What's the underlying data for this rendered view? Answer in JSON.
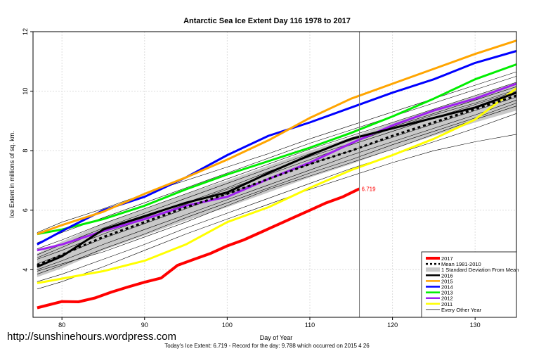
{
  "watermark": "http://sunshinehours.wordpress.com",
  "footer": "Today's Ice Extent: 6.719 - Record for the day: 9.788 which occurred on 2015 4 26",
  "chart_data": {
    "type": "line",
    "title": "Antarctic Sea Ice Extent Day 116 1978 to 2017",
    "xlabel": "Day of Year",
    "ylabel": "Ice Extent in millions of sq. km.",
    "xlim": [
      76.5,
      135
    ],
    "ylim": [
      2.4,
      12
    ],
    "x_ticks": [
      80,
      90,
      100,
      110,
      120,
      130
    ],
    "y_ticks": [
      4,
      6,
      8,
      10,
      12
    ],
    "grid": true,
    "legend_position": "bottom-right",
    "current_day_line": 116,
    "current_label": "6.719",
    "band": {
      "name": "1 Standard Deviation From Mean",
      "x": [
        77,
        80,
        85,
        90,
        95,
        100,
        105,
        110,
        115,
        120,
        125,
        130,
        135
      ],
      "upper": [
        4.55,
        4.95,
        5.55,
        6.05,
        6.55,
        7.0,
        7.5,
        8.0,
        8.45,
        8.95,
        9.4,
        9.85,
        10.3
      ],
      "lower": [
        3.75,
        4.05,
        4.65,
        5.15,
        5.65,
        6.1,
        6.6,
        7.1,
        7.55,
        8.05,
        8.5,
        8.95,
        9.35
      ]
    },
    "series": [
      {
        "name": "2017",
        "color": "#ff0000",
        "width": 4,
        "x": [
          77,
          80,
          82,
          84,
          86,
          88,
          90,
          92,
          94,
          96,
          98,
          100,
          102,
          104,
          106,
          108,
          110,
          112,
          114,
          116
        ],
        "y": [
          2.72,
          2.93,
          2.92,
          3.05,
          3.25,
          3.42,
          3.58,
          3.72,
          4.15,
          4.35,
          4.55,
          4.8,
          5.0,
          5.25,
          5.5,
          5.75,
          6.0,
          6.25,
          6.45,
          6.72
        ]
      },
      {
        "name": "Mean 1981-2010",
        "color": "#000000",
        "width": 3,
        "dash": "4,4",
        "x": [
          77,
          80,
          85,
          90,
          95,
          100,
          105,
          110,
          115,
          120,
          125,
          130,
          135
        ],
        "y": [
          4.15,
          4.5,
          5.1,
          5.6,
          6.1,
          6.55,
          7.05,
          7.55,
          8.0,
          8.5,
          8.95,
          9.4,
          9.85
        ]
      },
      {
        "name": "2016",
        "color": "#000000",
        "width": 3,
        "x": [
          77,
          80,
          85,
          90,
          95,
          100,
          105,
          110,
          115,
          120,
          125,
          130,
          135
        ],
        "y": [
          4.1,
          4.45,
          5.35,
          5.8,
          6.25,
          6.6,
          7.25,
          7.85,
          8.4,
          8.75,
          9.1,
          9.45,
          9.95
        ]
      },
      {
        "name": "2015",
        "color": "#ffa500",
        "width": 3,
        "x": [
          77,
          80,
          85,
          90,
          95,
          100,
          105,
          110,
          115,
          120,
          125,
          130,
          135
        ],
        "y": [
          5.2,
          5.5,
          5.95,
          6.55,
          7.1,
          7.7,
          8.35,
          9.1,
          9.75,
          10.25,
          10.75,
          11.25,
          11.7
        ]
      },
      {
        "name": "2014",
        "color": "#0000ff",
        "width": 3,
        "x": [
          77,
          80,
          85,
          90,
          95,
          100,
          105,
          110,
          115,
          120,
          125,
          130,
          135
        ],
        "y": [
          4.85,
          5.3,
          6.0,
          6.45,
          7.1,
          7.85,
          8.5,
          8.95,
          9.45,
          9.95,
          10.4,
          10.95,
          11.35
        ]
      },
      {
        "name": "2013",
        "color": "#00ee00",
        "width": 3,
        "x": [
          77,
          80,
          85,
          90,
          95,
          100,
          105,
          110,
          115,
          120,
          125,
          130,
          135
        ],
        "y": [
          5.2,
          5.35,
          5.7,
          6.15,
          6.7,
          7.2,
          7.65,
          8.1,
          8.6,
          9.15,
          9.75,
          10.4,
          10.9
        ]
      },
      {
        "name": "2012",
        "color": "#a020f0",
        "width": 3,
        "x": [
          77,
          80,
          85,
          90,
          95,
          100,
          105,
          110,
          115,
          120,
          125,
          130,
          135
        ],
        "y": [
          4.65,
          4.85,
          5.3,
          5.7,
          6.15,
          6.45,
          7.05,
          7.6,
          8.25,
          8.85,
          9.35,
          9.75,
          10.25
        ]
      },
      {
        "name": "2011",
        "color": "#ffff00",
        "width": 3,
        "x": [
          77,
          80,
          85,
          90,
          95,
          100,
          105,
          110,
          115,
          120,
          125,
          130,
          135
        ],
        "y": [
          3.55,
          3.7,
          3.95,
          4.3,
          4.85,
          5.6,
          6.1,
          6.75,
          7.35,
          7.85,
          8.4,
          9.05,
          10.1
        ]
      }
    ],
    "other_years": {
      "name": "Every Other Year",
      "color": "#000000",
      "x": [
        77,
        80,
        85,
        90,
        95,
        100,
        105,
        110,
        115,
        120,
        125,
        130,
        135
      ],
      "lines": [
        [
          3.35,
          3.6,
          4.1,
          4.65,
          5.2,
          5.7,
          6.2,
          6.7,
          7.15,
          7.6,
          8.0,
          8.3,
          8.55
        ],
        [
          3.6,
          3.85,
          4.35,
          4.85,
          5.4,
          5.9,
          6.4,
          6.9,
          7.4,
          7.85,
          8.3,
          8.75,
          9.25
        ],
        [
          3.85,
          4.15,
          4.7,
          5.2,
          5.75,
          6.25,
          6.75,
          7.25,
          7.7,
          8.2,
          8.65,
          9.1,
          9.6
        ],
        [
          4.0,
          4.3,
          4.85,
          5.35,
          5.85,
          6.35,
          6.85,
          7.35,
          7.85,
          8.3,
          8.75,
          9.2,
          9.7
        ],
        [
          4.2,
          4.5,
          5.05,
          5.55,
          6.05,
          6.55,
          7.05,
          7.55,
          8.0,
          8.45,
          8.9,
          9.35,
          9.8
        ],
        [
          4.35,
          4.65,
          5.2,
          5.7,
          6.2,
          6.7,
          7.2,
          7.7,
          8.2,
          8.65,
          9.1,
          9.55,
          10.0
        ],
        [
          4.5,
          4.85,
          5.4,
          5.9,
          6.4,
          6.9,
          7.4,
          7.9,
          8.35,
          8.8,
          9.25,
          9.7,
          10.15
        ],
        [
          4.7,
          5.0,
          5.55,
          6.05,
          6.55,
          7.05,
          7.55,
          8.05,
          8.5,
          8.95,
          9.4,
          9.85,
          10.3
        ],
        [
          4.9,
          5.25,
          5.75,
          6.25,
          6.75,
          7.25,
          7.75,
          8.25,
          8.7,
          9.15,
          9.6,
          10.05,
          10.5
        ],
        [
          5.25,
          5.6,
          6.05,
          6.55,
          7.0,
          7.45,
          7.9,
          8.4,
          8.85,
          9.3,
          9.75,
          10.2,
          10.65
        ],
        [
          3.95,
          4.2,
          4.6,
          5.1,
          5.6,
          6.15,
          6.7,
          7.15,
          7.6,
          8.05,
          8.55,
          9.05,
          9.5
        ],
        [
          4.4,
          4.75,
          5.35,
          5.75,
          6.25,
          6.75,
          7.3,
          7.8,
          8.25,
          8.75,
          9.2,
          9.6,
          10.05
        ]
      ]
    }
  }
}
